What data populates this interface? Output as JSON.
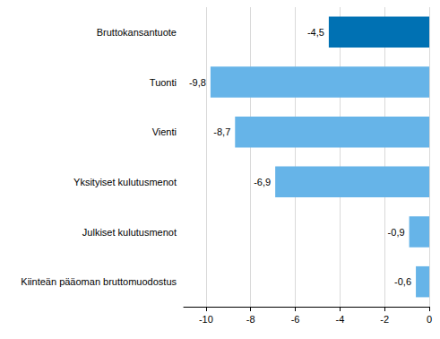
{
  "chart_data": {
    "type": "bar",
    "orientation": "horizontal",
    "categories": [
      "Bruttokansantuote",
      "Tuonti",
      "Vienti",
      "Yksityiset kulutusmenot",
      "Julkiset kulutusmenot",
      "Kiinteän pääoman bruttomuodostus"
    ],
    "values": [
      -4.5,
      -9.8,
      -8.7,
      -6.9,
      -0.9,
      -0.6
    ],
    "value_labels": [
      "-4,5",
      "-9,8",
      "-8,7",
      "-6,9",
      "-0,9",
      "-0,6"
    ],
    "colors": [
      "#0071b3",
      "#66b4e8",
      "#66b4e8",
      "#66b4e8",
      "#66b4e8",
      "#66b4e8"
    ],
    "xlim": [
      -11,
      0
    ],
    "xticks": [
      -10,
      -8,
      -6,
      -4,
      -2,
      0
    ],
    "grid": true,
    "data_labels": true
  }
}
